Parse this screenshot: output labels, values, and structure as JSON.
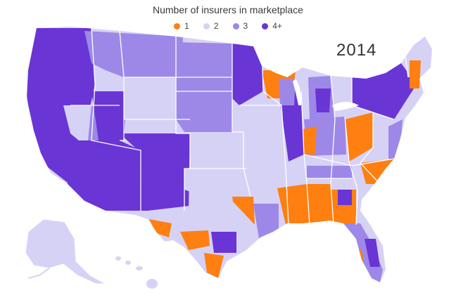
{
  "title": "Number of insurers in marketplace",
  "year": "2014",
  "legend": [
    {
      "label": "1",
      "color": "#ff7f11"
    },
    {
      "label": "2",
      "color": "#d6d2f6"
    },
    {
      "label": "3",
      "color": "#9d88e8"
    },
    {
      "label": "4+",
      "color": "#6a35d5"
    }
  ],
  "colors": {
    "one": "#ff7f11",
    "two": "#d6d2f6",
    "three": "#9d88e8",
    "four_plus": "#6a35d5",
    "border": "#ffffff"
  }
}
